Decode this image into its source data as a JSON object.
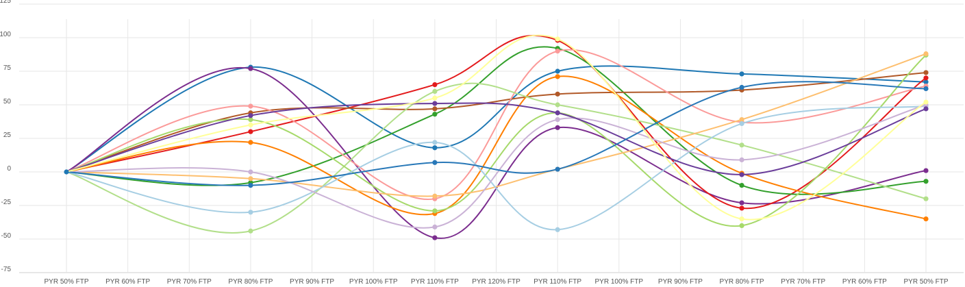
{
  "chart_data": {
    "type": "line",
    "title": "",
    "xlabel": "",
    "ylabel": "",
    "ylim": [
      -75,
      125
    ],
    "yticks": [
      -75,
      -50,
      -25,
      0,
      25,
      50,
      75,
      100,
      125
    ],
    "ytick_labels": [
      "-75",
      "-50",
      "-25",
      "0",
      "25",
      "50",
      "75",
      "100",
      "125"
    ],
    "categories": [
      "PYR 50% FTP",
      "PYR 60% FTP",
      "PYR 70% FTP",
      "PYR 80% FTP",
      "PYR 90% FTP",
      "PYR 100% FTP",
      "PYR 110% FTP",
      "PYR 120% FTP",
      "PYR 110% FTP",
      "PYR 100% FTP",
      "PYR 90% FTP",
      "PYR 80% FTP",
      "PYR 70% FTP",
      "PYR 60% FTP",
      "PYR 50% FTP"
    ],
    "grid": true,
    "legend": "none",
    "smooth": true,
    "series": [
      {
        "color": "#1f78b4",
        "points": [
          [
            0,
            0
          ],
          [
            3,
            78
          ],
          [
            6,
            18
          ],
          [
            8,
            75
          ],
          [
            11,
            73
          ],
          [
            14,
            67
          ]
        ]
      },
      {
        "color": "#7b2d8e",
        "points": [
          [
            0,
            0
          ],
          [
            3,
            77
          ],
          [
            6,
            -49
          ],
          [
            8,
            33
          ],
          [
            11,
            -23
          ],
          [
            14,
            1
          ]
        ]
      },
      {
        "color": "#e31a1c",
        "points": [
          [
            0,
            0
          ],
          [
            3,
            30
          ],
          [
            6,
            65
          ],
          [
            8,
            98
          ],
          [
            11,
            -27
          ],
          [
            14,
            70
          ]
        ]
      },
      {
        "color": "#33a02c",
        "points": [
          [
            0,
            0
          ],
          [
            3,
            -8
          ],
          [
            6,
            43
          ],
          [
            8,
            92
          ],
          [
            11,
            -10
          ],
          [
            14,
            -7
          ]
        ]
      },
      {
        "color": "#b15928",
        "points": [
          [
            0,
            0
          ],
          [
            3,
            44
          ],
          [
            6,
            47
          ],
          [
            8,
            58
          ],
          [
            11,
            61
          ],
          [
            14,
            74
          ]
        ]
      },
      {
        "color": "#ff7f00",
        "points": [
          [
            0,
            0
          ],
          [
            3,
            22
          ],
          [
            6,
            -31
          ],
          [
            8,
            71
          ],
          [
            11,
            -1
          ],
          [
            14,
            -35
          ]
        ]
      },
      {
        "color": "#fb9a99",
        "points": [
          [
            0,
            0
          ],
          [
            3,
            49
          ],
          [
            6,
            -20
          ],
          [
            8,
            90
          ],
          [
            11,
            37
          ],
          [
            14,
            64
          ]
        ]
      },
      {
        "color": "#b2df8a",
        "points": [
          [
            0,
            0
          ],
          [
            3,
            -44
          ],
          [
            6,
            60
          ],
          [
            8,
            50
          ],
          [
            11,
            20
          ],
          [
            14,
            -20
          ]
        ]
      },
      {
        "color": "#a6d96a",
        "points": [
          [
            0,
            0
          ],
          [
            3,
            39
          ],
          [
            6,
            -29
          ],
          [
            8,
            44
          ],
          [
            11,
            -40
          ],
          [
            14,
            87
          ]
        ]
      },
      {
        "color": "#fdbf6f",
        "points": [
          [
            0,
            0
          ],
          [
            3,
            -5
          ],
          [
            6,
            -18
          ],
          [
            8,
            2
          ],
          [
            11,
            39
          ],
          [
            14,
            88
          ]
        ]
      },
      {
        "color": "#a6cee3",
        "points": [
          [
            0,
            0
          ],
          [
            3,
            -30
          ],
          [
            6,
            22
          ],
          [
            8,
            -43
          ],
          [
            11,
            36
          ],
          [
            14,
            49
          ]
        ]
      },
      {
        "color": "#cab2d6",
        "points": [
          [
            0,
            0
          ],
          [
            3,
            0
          ],
          [
            6,
            -41
          ],
          [
            8,
            39
          ],
          [
            11,
            9
          ],
          [
            14,
            50
          ]
        ]
      },
      {
        "color": "#6a3d9a",
        "points": [
          [
            0,
            0
          ],
          [
            3,
            42
          ],
          [
            6,
            51
          ],
          [
            8,
            44
          ],
          [
            11,
            -2
          ],
          [
            14,
            47
          ]
        ]
      },
      {
        "color": "#2878b8",
        "points": [
          [
            0,
            0
          ],
          [
            3,
            -10
          ],
          [
            6,
            7
          ],
          [
            8,
            2
          ],
          [
            11,
            63
          ],
          [
            14,
            62
          ]
        ]
      },
      {
        "color": "#ffff99",
        "points": [
          [
            0,
            0
          ],
          [
            3,
            35
          ],
          [
            6,
            55
          ],
          [
            8,
            99
          ],
          [
            11,
            -35
          ],
          [
            14,
            52
          ]
        ]
      }
    ]
  }
}
